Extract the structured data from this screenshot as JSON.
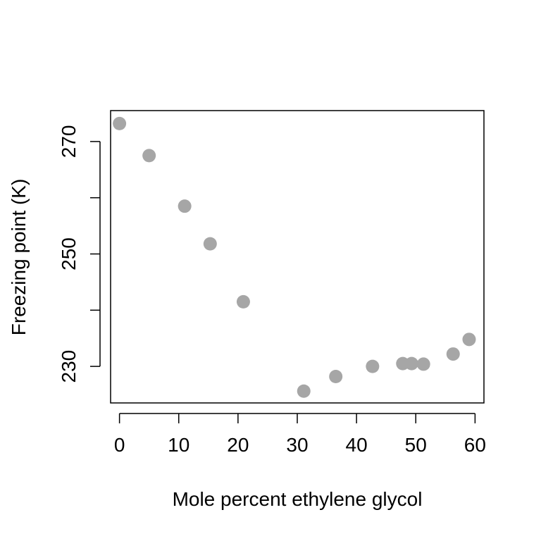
{
  "chart_data": {
    "type": "scatter",
    "title": "",
    "xlabel": "Mole percent ethylene glycol",
    "ylabel": "Freezing point (K)",
    "xlim": [
      -1.5,
      61.5
    ],
    "ylim": [
      223.5,
      275.5
    ],
    "xticks": [
      0,
      10,
      20,
      30,
      40,
      50,
      60
    ],
    "xtick_labels": [
      "0",
      "10",
      "20",
      "30",
      "40",
      "50",
      "60"
    ],
    "yticks": [
      230,
      240,
      250,
      260,
      270
    ],
    "ytick_labels": [
      "230",
      "",
      "250",
      "",
      "270"
    ],
    "grid": false,
    "point_color": "#a6a6a6",
    "x": [
      0.0,
      5.0,
      11.0,
      15.3,
      20.9,
      31.1,
      36.5,
      42.7,
      47.8,
      49.3,
      51.3,
      56.3,
      59.0
    ],
    "y": [
      273.2,
      267.5,
      258.5,
      251.8,
      241.5,
      225.6,
      228.2,
      230.0,
      230.5,
      230.5,
      230.4,
      232.2,
      234.8
    ]
  }
}
